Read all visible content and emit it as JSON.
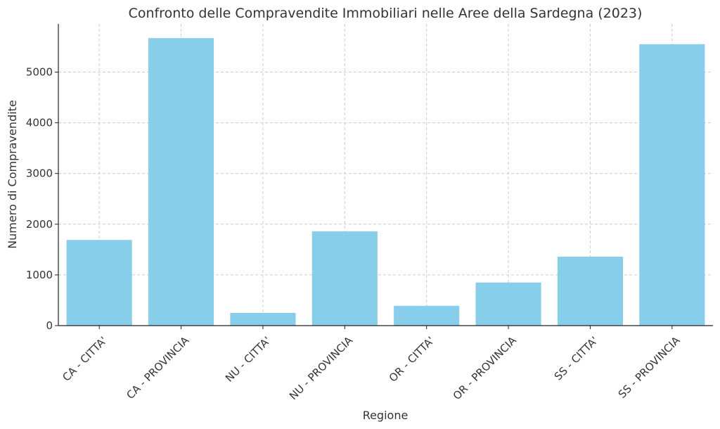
{
  "chart_data": {
    "type": "bar",
    "title": "Confronto delle Compravendite Immobiliari nelle Aree della Sardegna (2023)",
    "xlabel": "Regione",
    "ylabel": "Numero di Compravendite",
    "categories": [
      "CA - CITTA'",
      "CA - PROVINCIA",
      "NU - CITTA'",
      "NU - PROVINCIA",
      "OR - CITTA'",
      "OR - PROVINCIA",
      "SS - CITTA'",
      "SS - PROVINCIA"
    ],
    "values": [
      1690,
      5670,
      250,
      1860,
      390,
      850,
      1360,
      5550
    ],
    "ylim": [
      0,
      5950
    ],
    "yticks": [
      0,
      1000,
      2000,
      3000,
      4000,
      5000
    ],
    "grid": true,
    "bar_color": "#87ceeb"
  }
}
